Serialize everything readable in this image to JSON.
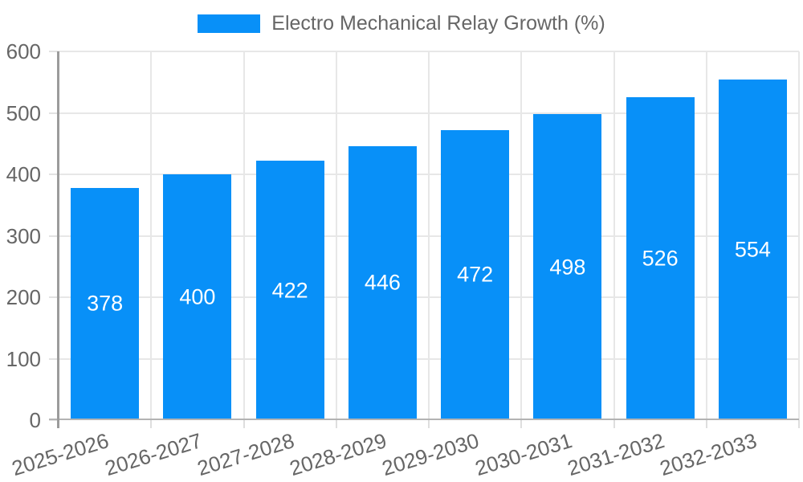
{
  "legend": {
    "position": "top",
    "items": [
      {
        "label": "Electro Mechanical Relay Growth (%)",
        "swatch_color": "#0890F8"
      }
    ]
  },
  "chart_data": {
    "type": "bar",
    "title": "Electro Mechanical Relay Growth (%)",
    "categories": [
      "2025-2026",
      "2026-2027",
      "2027-2028",
      "2028-2029",
      "2029-2030",
      "2030-2031",
      "2031-2032",
      "2032-2033"
    ],
    "series": [
      {
        "name": "Electro Mechanical Relay Growth (%)",
        "values": [
          378,
          400,
          422,
          446,
          472,
          498,
          526,
          554
        ]
      }
    ],
    "value_labels_shown": true,
    "xlabel": "",
    "ylabel": "",
    "ylim": [
      0,
      600
    ],
    "y_ticks": [
      0,
      100,
      200,
      300,
      400,
      500,
      600
    ],
    "grid": true,
    "legend_position": "top",
    "x_label_rotation_deg": -17,
    "colors": {
      "bar": "#0890F8",
      "value_text": "#ffffff",
      "axis_text": "#666666",
      "gridline": "#e7e7e7",
      "y_axis_line": "#9b9b9b",
      "x_axis_line": "#b3b3b3",
      "background": "#ffffff"
    }
  }
}
